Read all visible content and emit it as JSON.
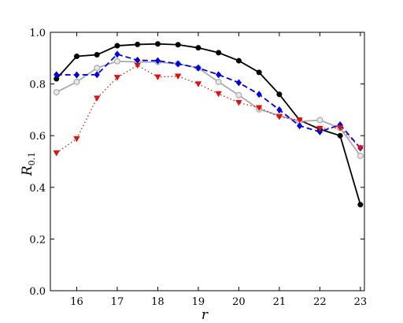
{
  "chart_data": {
    "type": "line",
    "title": "",
    "xlabel": "r",
    "ylabel": {
      "main": "R",
      "sub": "0.1"
    },
    "xlim": [
      15.35,
      23.1
    ],
    "ylim": [
      0.0,
      1.0
    ],
    "xticks": [
      16,
      17,
      18,
      19,
      20,
      21,
      22,
      23
    ],
    "yticks": [
      0.0,
      0.2,
      0.4,
      0.6,
      0.8,
      1.0
    ],
    "ytick_labels": [
      "0.0",
      "0.2",
      "0.4",
      "0.6",
      "0.8",
      "1.0"
    ],
    "grid": false,
    "legend": false,
    "series": [
      {
        "color": "#000000",
        "style": "solid",
        "marker": "circle",
        "x": [
          15.5,
          16.0,
          16.5,
          17.0,
          17.5,
          18.0,
          18.5,
          19.0,
          19.5,
          20.0,
          20.5,
          21.0,
          21.5,
          22.0,
          22.5,
          23.0
        ],
        "y": [
          0.82,
          0.907,
          0.913,
          0.948,
          0.953,
          0.955,
          0.952,
          0.94,
          0.921,
          0.89,
          0.845,
          0.76,
          0.66,
          0.625,
          0.6,
          0.333
        ]
      },
      {
        "color": "#aaaaaa",
        "style": "solid",
        "marker": "open-circle",
        "x": [
          15.5,
          16.0,
          16.5,
          17.0,
          17.5,
          18.0,
          18.5,
          19.0,
          19.5,
          20.0,
          20.5,
          21.0,
          21.5,
          22.0,
          22.5,
          23.0
        ],
        "y": [
          0.768,
          0.808,
          0.862,
          0.888,
          0.885,
          0.885,
          0.878,
          0.862,
          0.808,
          0.757,
          0.702,
          0.678,
          0.655,
          0.66,
          0.63,
          0.522
        ]
      },
      {
        "color": "#0000dd",
        "style": "dashed",
        "marker": "diamond",
        "x": [
          15.5,
          16.0,
          16.5,
          17.0,
          17.5,
          18.0,
          18.5,
          19.0,
          19.5,
          20.0,
          20.5,
          21.0,
          21.5,
          22.0,
          22.5,
          23.0
        ],
        "y": [
          0.836,
          0.835,
          0.836,
          0.915,
          0.892,
          0.89,
          0.878,
          0.862,
          0.836,
          0.805,
          0.76,
          0.7,
          0.638,
          0.615,
          0.642,
          0.552
        ]
      },
      {
        "color": "#dd1111",
        "style": "dotted",
        "marker": "triangle-down",
        "x": [
          15.5,
          16.0,
          16.5,
          17.0,
          17.5,
          18.0,
          18.5,
          19.0,
          19.5,
          20.0,
          20.5,
          21.0,
          21.5,
          22.0,
          22.5,
          23.0
        ],
        "y": [
          0.533,
          0.588,
          0.745,
          0.825,
          0.872,
          0.827,
          0.83,
          0.8,
          0.762,
          0.728,
          0.708,
          0.673,
          0.66,
          0.628,
          0.63,
          0.552
        ]
      }
    ]
  }
}
